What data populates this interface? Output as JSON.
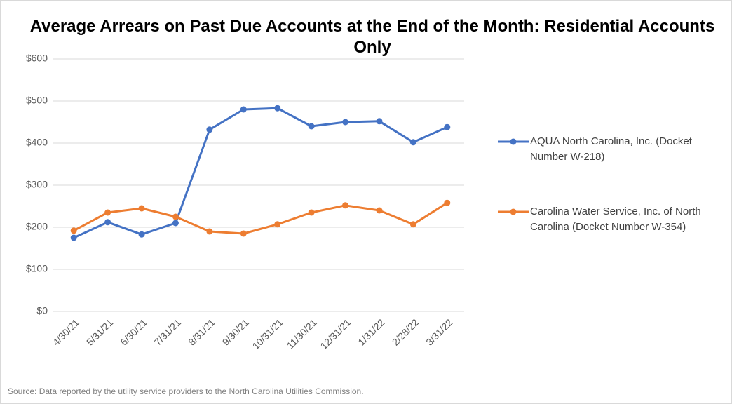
{
  "chart_data": {
    "type": "line",
    "title": "Average Arrears on Past Due Accounts at the End of the Month: Residential Accounts Only",
    "categories": [
      "4/30/21",
      "5/31/21",
      "6/30/21",
      "7/31/21",
      "8/31/21",
      "9/30/21",
      "10/31/21",
      "11/30/21",
      "12/31/21",
      "1/31/22",
      "2/28/22",
      "3/31/22"
    ],
    "series": [
      {
        "name": "AQUA North Carolina, Inc. (Docket Number W-218)",
        "color": "#4472c4",
        "values": [
          175,
          212,
          183,
          210,
          432,
          480,
          483,
          440,
          450,
          452,
          402,
          438
        ]
      },
      {
        "name": "Carolina Water Service, Inc. of North Carolina (Docket Number W-354)",
        "color": "#ed7d31",
        "values": [
          192,
          235,
          245,
          225,
          190,
          185,
          207,
          235,
          252,
          240,
          207,
          258
        ]
      }
    ],
    "ylim": [
      0,
      600
    ],
    "yticks": [
      {
        "value": 0,
        "label": "$0"
      },
      {
        "value": 100,
        "label": "$100"
      },
      {
        "value": 200,
        "label": "$200"
      },
      {
        "value": 300,
        "label": "$300"
      },
      {
        "value": 400,
        "label": "$400"
      },
      {
        "value": 500,
        "label": "$500"
      },
      {
        "value": 600,
        "label": "$600"
      }
    ],
    "grid": true,
    "legend": "right",
    "source": "Source: Data reported by the utility service providers to the North Carolina Utilities Commission."
  }
}
